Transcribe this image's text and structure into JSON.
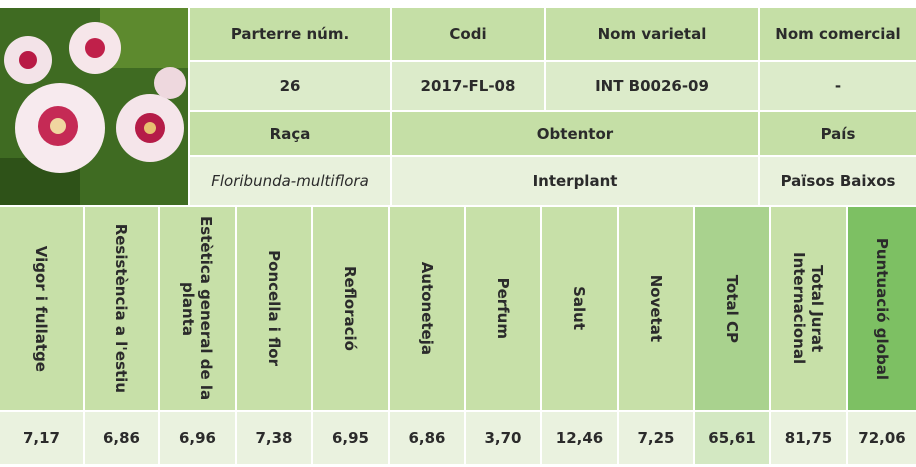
{
  "variety_info": {
    "headers": [
      "Parterre núm.",
      "Codi",
      "Nom varietal",
      "Nom comercial"
    ],
    "values": [
      "26",
      "2017-FL-08",
      "INT B0026-09",
      "-"
    ],
    "headers_2": [
      "Raça",
      "Obtentor",
      "País"
    ],
    "values_2": [
      "Floribunda-multiflora",
      "Interplant",
      "Països Baixos"
    ]
  },
  "scores": {
    "columns": [
      "Vigor i fullatge",
      "Resistència a l'estiu",
      "Estètica general de la planta",
      "Poncella i flor",
      "Refloració",
      "Autoneteja",
      "Perfum",
      "Salut",
      "Novetat",
      "Total CP",
      "Total Jurat Internacional",
      "Puntuació global"
    ],
    "values": [
      "7,17",
      "6,86",
      "6,96",
      "7,38",
      "6,95",
      "6,86",
      "3,70",
      "12,46",
      "7,25",
      "65,61",
      "81,75",
      "72,06"
    ]
  }
}
